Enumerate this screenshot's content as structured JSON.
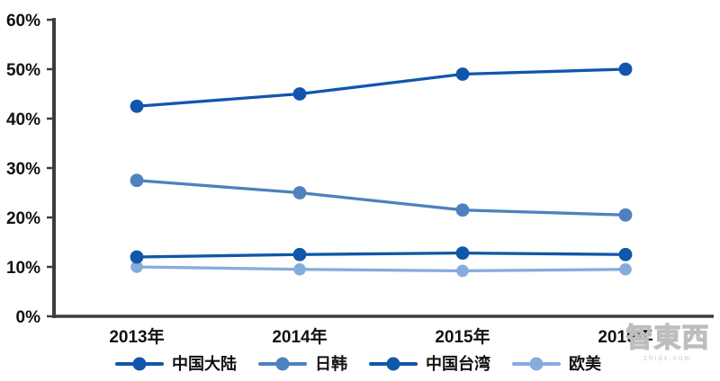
{
  "watermark": {
    "logo_text": "智東西",
    "site_text": "zhidx.com"
  },
  "chart_data": {
    "type": "line",
    "title": "",
    "xlabel": "",
    "ylabel": "",
    "x_categories": [
      "2013年",
      "2014年",
      "2015年",
      "2016年"
    ],
    "y_ticks": [
      "0%",
      "10%",
      "20%",
      "30%",
      "40%",
      "50%",
      "60%"
    ],
    "ylim": [
      0,
      60
    ],
    "y_unit": "%",
    "grid": false,
    "legend_position": "bottom",
    "axis_color": "#3d3d3d",
    "series": [
      {
        "name": "中国大陆",
        "color": "#1156AC",
        "values": [
          42.5,
          45,
          49,
          50
        ]
      },
      {
        "name": "日韩",
        "color": "#4E81BD",
        "values": [
          27.5,
          25,
          21.5,
          20.5
        ]
      },
      {
        "name": "中国台湾",
        "color": "#0F57A9",
        "values": [
          12,
          12.5,
          12.8,
          12.5
        ]
      },
      {
        "name": "欧美",
        "color": "#85ACDB",
        "values": [
          10,
          9.5,
          9.2,
          9.5
        ]
      }
    ]
  }
}
